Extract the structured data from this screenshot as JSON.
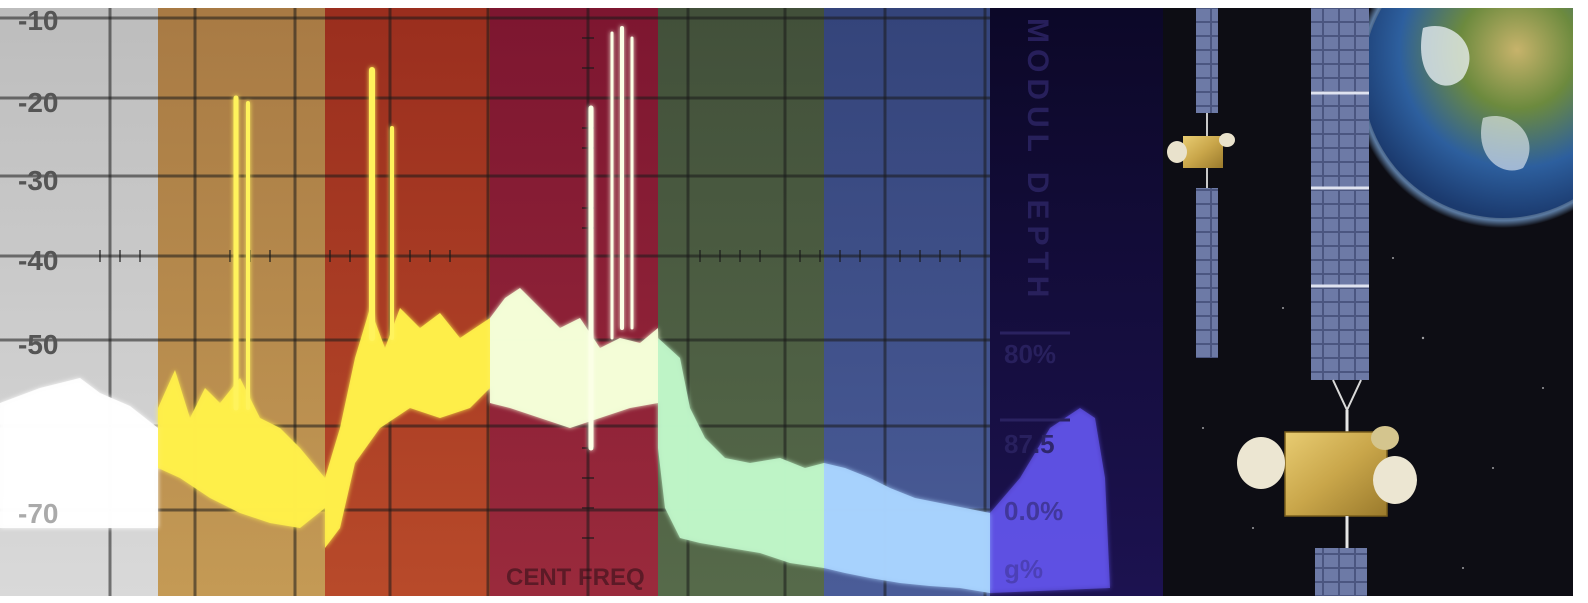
{
  "scope": {
    "y_tick_labels": [
      "-10",
      "-20",
      "-30",
      "-40",
      "-50",
      "-70"
    ],
    "bottom_label": "CENT FREQ",
    "vertical_label": "MODUL DEPTH",
    "readouts": [
      "80%",
      "87.5",
      "0.0%",
      "g%"
    ],
    "strip_colors": [
      "#c9c9c9",
      "#b38a4f",
      "#a33a26",
      "#8a1e38",
      "#4b5e45",
      "#3e4f86",
      "#1a1040"
    ]
  },
  "space": {
    "background": "#0d0d14",
    "earth_colors": [
      "#2d5f9e",
      "#6c8a3e",
      "#c7b36b"
    ],
    "panel_color": "#6d7aa6",
    "bus_color": "#c9a64a"
  }
}
